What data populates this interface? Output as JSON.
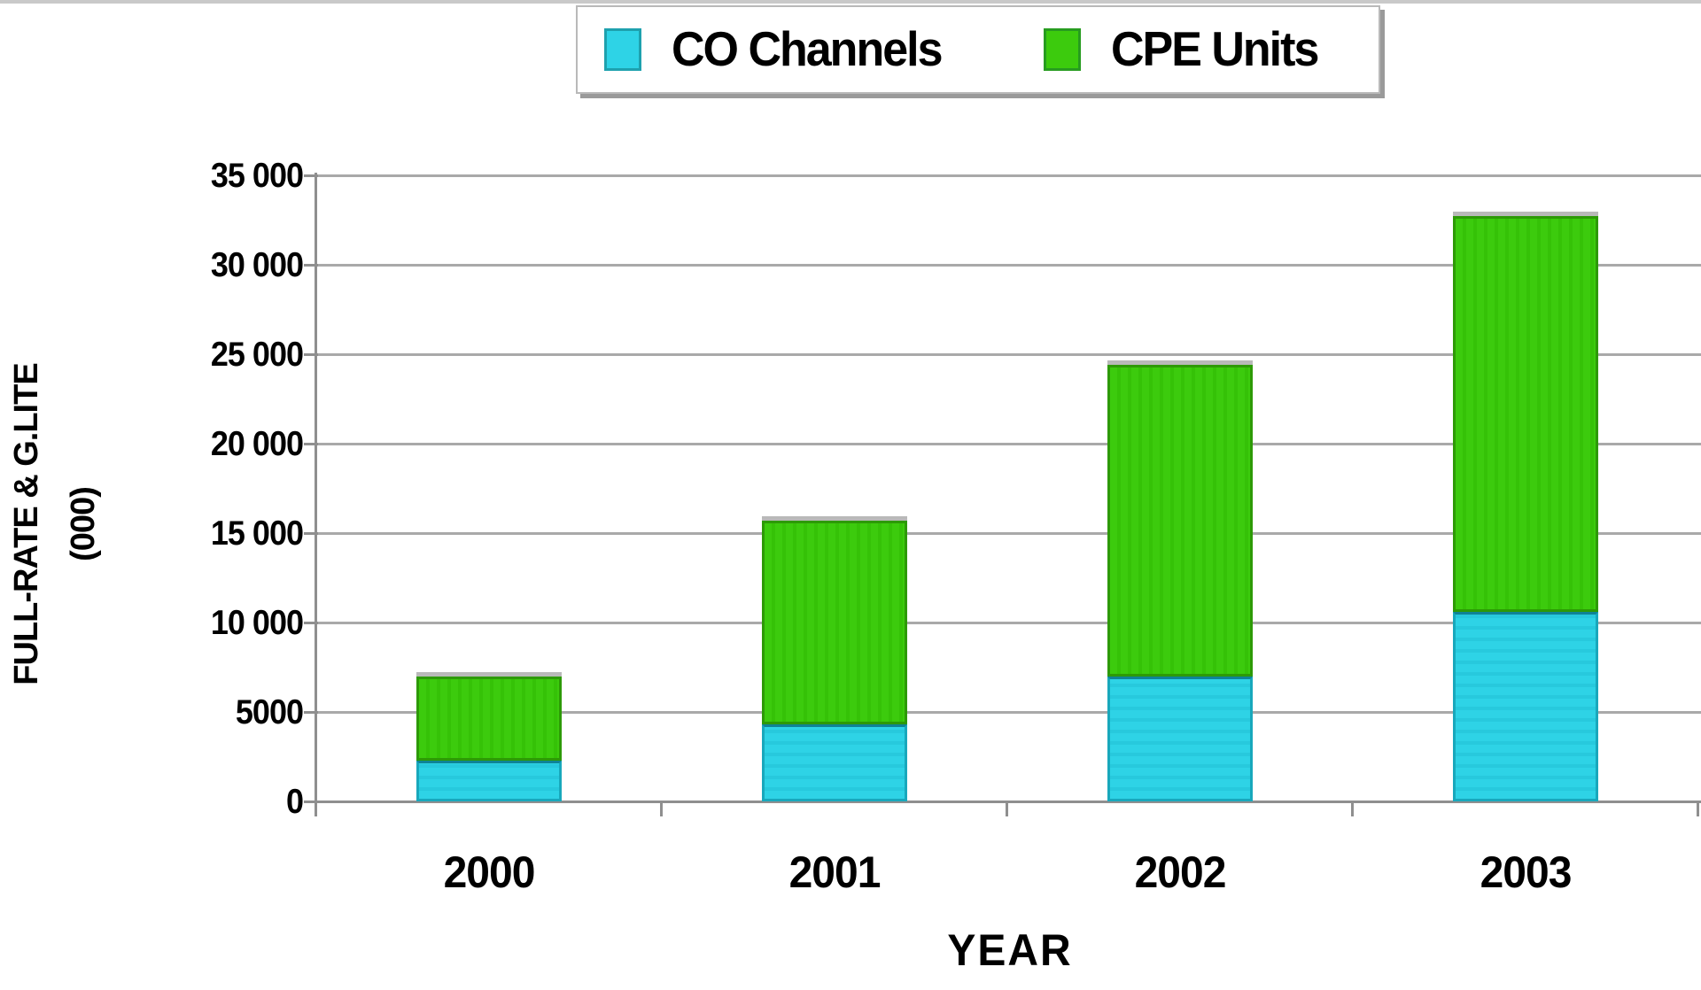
{
  "chart_data": {
    "type": "bar",
    "stacked": true,
    "title": "",
    "categories": [
      "2000",
      "2001",
      "2002",
      "2003"
    ],
    "series": [
      {
        "name": "CO Channels",
        "color": "#2ed3e6",
        "values": [
          2300,
          4300,
          7000,
          10600
        ]
      },
      {
        "name": "CPE Units",
        "color": "#3ccb0d",
        "values": [
          4700,
          11400,
          17400,
          22100
        ]
      }
    ],
    "stacked_totals": [
      7000,
      15700,
      24400,
      32700
    ],
    "xlabel": "YEAR",
    "ylabel_line1": "FULL-RATE & G.LITE",
    "ylabel_line2": "(000)",
    "ylim": [
      0,
      35000
    ],
    "ytick_step": 5000,
    "ytick_labels": [
      "0",
      "5000",
      "10 000",
      "15 000",
      "20 000",
      "25 000",
      "30 000",
      "35 000"
    ],
    "grid": true,
    "legend_position": "top-center"
  },
  "legend": {
    "items": [
      {
        "label": "CO Channels",
        "color": "#2ed3e6"
      },
      {
        "label": "CPE Units",
        "color": "#3ccb0d"
      }
    ]
  },
  "style_colors": {
    "gridline": "#a9a9a9",
    "axis": "#8f8f8f",
    "background": "#ffffff",
    "bar_shadow": "#b9b9b9"
  }
}
